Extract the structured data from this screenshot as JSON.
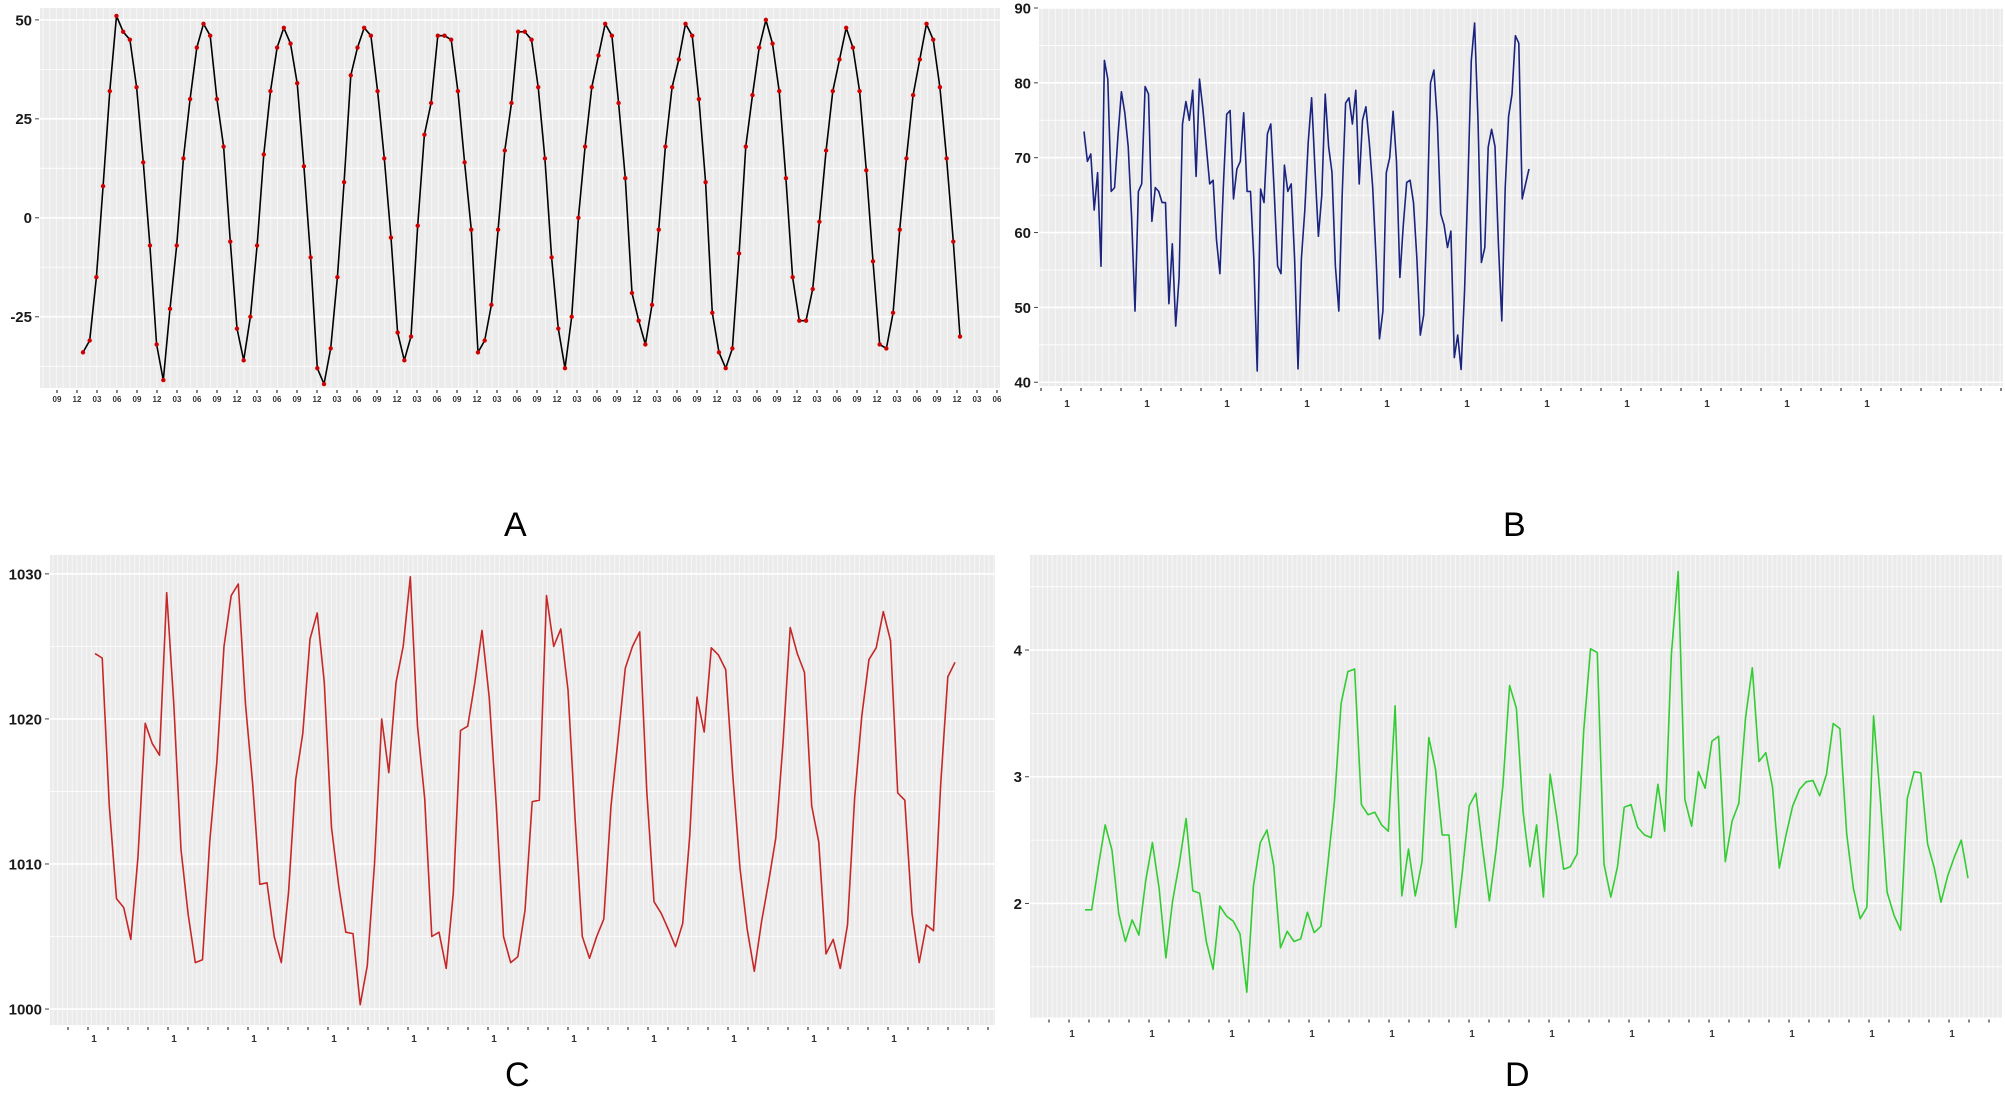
{
  "figure": {
    "panels": [
      {
        "id": "A",
        "label": "A"
      },
      {
        "id": "B",
        "label": "B"
      },
      {
        "id": "C",
        "label": "C"
      },
      {
        "id": "D",
        "label": "D"
      }
    ]
  },
  "chart_data": [
    {
      "panel": "A",
      "type": "line",
      "title": "",
      "xlabel": "",
      "ylabel": "",
      "line_color": "#000000",
      "marker_color": "#cc0000",
      "markers": true,
      "grid": true,
      "background": "#ebebeb",
      "ylim": [
        -43,
        53
      ],
      "yticks": [
        -25,
        0,
        25,
        50
      ],
      "xtick_labels": [
        "09",
        "12",
        "03",
        "06",
        "09",
        "12",
        "03",
        "06",
        "09",
        "12",
        "03",
        "06",
        "09",
        "12",
        "03",
        "06",
        "09",
        "12",
        "03",
        "06",
        "09",
        "12",
        "03",
        "06",
        "09",
        "12",
        "03",
        "06",
        "09",
        "12",
        "03",
        "06",
        "09",
        "12",
        "03",
        "06",
        "09",
        "12",
        "03",
        "06",
        "09",
        "12",
        "03",
        "06",
        "09",
        "12",
        "03",
        "06"
      ],
      "values": [
        -34,
        -31,
        -15,
        8,
        32,
        51,
        47,
        45,
        33,
        14,
        -7,
        -32,
        -41,
        -23,
        -7,
        15,
        30,
        43,
        49,
        46,
        30,
        18,
        -6,
        -28,
        -36,
        -25,
        -7,
        16,
        32,
        43,
        48,
        44,
        34,
        13,
        -10,
        -38,
        -42,
        -33,
        -15,
        9,
        36,
        43,
        48,
        46,
        32,
        15,
        -5,
        -29,
        -36,
        -30,
        -2,
        21,
        29,
        46,
        46,
        45,
        32,
        14,
        -3,
        -34,
        -31,
        -22,
        -3,
        17,
        29,
        47,
        47,
        45,
        33,
        15,
        -10,
        -28,
        -38,
        -25,
        0,
        18,
        33,
        41,
        49,
        46,
        29,
        10,
        -19,
        -26,
        -32,
        -22,
        -3,
        18,
        33,
        40,
        49,
        46,
        30,
        9,
        -24,
        -34,
        -38,
        -33,
        -9,
        18,
        31,
        43,
        50,
        44,
        32,
        10,
        -15,
        -26,
        -26,
        -18,
        -1,
        17,
        32,
        40,
        48,
        43,
        32,
        12,
        -11,
        -32,
        -33,
        -24,
        -3,
        15,
        31,
        40,
        49,
        45,
        33,
        15,
        -6,
        -30
      ]
    },
    {
      "panel": "B",
      "type": "line",
      "title": "",
      "xlabel": "",
      "ylabel": "",
      "line_color": "#1a237e",
      "markers": false,
      "grid": true,
      "background": "#ebebeb",
      "ylim": [
        39.5,
        90
      ],
      "yticks": [
        40,
        50,
        60,
        70,
        80,
        90
      ],
      "xtick_labels": [
        "1",
        "1",
        "1",
        "1",
        "1",
        "1",
        "1",
        "1",
        "1",
        "1",
        "1"
      ],
      "values": [
        73.5,
        69.5,
        70.5,
        63,
        68,
        55.5,
        83,
        80.5,
        65.5,
        66,
        73,
        78.8,
        76,
        71.5,
        62,
        49.5,
        65.5,
        66.5,
        79.5,
        78.5,
        61.5,
        66,
        65.5,
        64,
        64,
        50.5,
        58.5,
        47.5,
        54,
        74.5,
        77.5,
        75,
        79,
        67.5,
        80.5,
        76.5,
        71.5,
        66.5,
        67,
        59,
        54.5,
        66,
        75.8,
        76.3,
        64.5,
        68.5,
        69.5,
        76,
        65.5,
        65.5,
        56.5,
        41.5,
        65.8,
        64,
        73.2,
        74.5,
        65.5,
        55.5,
        54.5,
        69,
        65.5,
        66.5,
        56.5,
        41.8,
        56.5,
        63,
        72,
        78,
        68.5,
        59.5,
        65,
        78.5,
        71.5,
        68,
        55.5,
        49.5,
        65,
        77.3,
        78,
        74.5,
        79,
        66.5,
        75,
        76.8,
        72,
        66,
        56.5,
        45.8,
        49.5,
        68,
        70,
        76.2,
        69.5,
        54,
        61,
        66.7,
        67,
        64,
        56.5,
        46.3,
        49,
        62,
        80,
        81.7,
        75,
        62.5,
        61,
        58,
        60.2,
        43.3,
        46.3,
        41.7,
        52,
        66.5,
        83,
        88,
        75,
        56,
        58,
        71.4,
        73.8,
        71.5,
        58.5,
        48.2,
        66,
        75.5,
        78.5,
        86.3,
        85.3,
        64.5,
        66.5,
        68.5
      ]
    },
    {
      "panel": "C",
      "type": "line",
      "title": "",
      "xlabel": "",
      "ylabel": "",
      "line_color": "#c62828",
      "markers": false,
      "grid": true,
      "background": "#ebebeb",
      "ylim": [
        998.9,
        1031.3
      ],
      "yticks": [
        1000,
        1010,
        1020,
        1030
      ],
      "xtick_labels": [
        "1",
        "1",
        "1",
        "1",
        "1",
        "1",
        "1",
        "1",
        "1",
        "1",
        "1"
      ],
      "values": [
        1024.5,
        1024.2,
        1014,
        1007.6,
        1007,
        1004.8,
        1010.5,
        1019.7,
        1018.3,
        1017.5,
        1028.7,
        1021,
        1011,
        1006.5,
        1003.2,
        1003.4,
        1011.5,
        1017,
        1025,
        1028.5,
        1029.3,
        1021,
        1015.5,
        1008.6,
        1008.7,
        1005,
        1003.2,
        1008,
        1015.8,
        1019,
        1025.5,
        1027.3,
        1022.5,
        1012.5,
        1008.5,
        1005.3,
        1005.2,
        1000.3,
        1003,
        1010,
        1020,
        1016.3,
        1022.5,
        1025,
        1029.8,
        1019.5,
        1014.5,
        1005,
        1005.3,
        1002.8,
        1008,
        1019.2,
        1019.5,
        1022.5,
        1026.1,
        1021.5,
        1014,
        1005,
        1003.2,
        1003.6,
        1006.8,
        1014.3,
        1014.4,
        1028.5,
        1025,
        1026.2,
        1022,
        1013,
        1005,
        1003.5,
        1005,
        1006.2,
        1014,
        1018.7,
        1023.5,
        1025,
        1026,
        1015,
        1007.4,
        1006.6,
        1005.5,
        1004.3,
        1005.9,
        1012,
        1021.5,
        1019.1,
        1024.9,
        1024.4,
        1023.4,
        1016.1,
        1009.7,
        1005.5,
        1002.6,
        1006,
        1008.8,
        1011.8,
        1018.3,
        1026.3,
        1024.5,
        1023.2,
        1014,
        1011.5,
        1003.8,
        1004.8,
        1002.8,
        1005.8,
        1014.6,
        1020.2,
        1024.1,
        1024.9,
        1027.4,
        1025.4,
        1014.9,
        1014.4,
        1006.6,
        1003.2,
        1005.8,
        1005.4,
        1015.5,
        1022.9,
        1023.9
      ]
    },
    {
      "panel": "D",
      "type": "line",
      "title": "",
      "xlabel": "",
      "ylabel": "",
      "line_color": "#33cc33",
      "markers": false,
      "grid": true,
      "background": "#ebebeb",
      "ylim": [
        1.1,
        4.75
      ],
      "yticks": [
        2,
        3,
        4
      ],
      "xtick_labels": [
        "1",
        "1",
        "1",
        "1",
        "1",
        "1",
        "1",
        "1",
        "1",
        "1",
        "1",
        "1"
      ],
      "values": [
        1.95,
        1.95,
        2.3,
        2.62,
        2.42,
        1.92,
        1.7,
        1.87,
        1.75,
        2.18,
        2.48,
        2.12,
        1.57,
        2.02,
        2.32,
        2.67,
        2.1,
        2.08,
        1.7,
        1.48,
        1.98,
        1.9,
        1.86,
        1.76,
        1.3,
        2.14,
        2.48,
        2.58,
        2.3,
        1.65,
        1.78,
        1.7,
        1.72,
        1.93,
        1.77,
        1.82,
        2.3,
        2.8,
        3.58,
        3.83,
        3.85,
        2.78,
        2.7,
        2.72,
        2.62,
        2.57,
        3.56,
        2.06,
        2.43,
        2.06,
        2.33,
        3.31,
        3.06,
        2.54,
        2.54,
        1.81,
        2.26,
        2.77,
        2.87,
        2.43,
        2.02,
        2.43,
        2.93,
        3.72,
        3.54,
        2.72,
        2.29,
        2.62,
        2.05,
        3.02,
        2.68,
        2.27,
        2.29,
        2.39,
        3.37,
        4.01,
        3.98,
        2.31,
        2.05,
        2.29,
        2.76,
        2.78,
        2.6,
        2.54,
        2.52,
        2.94,
        2.57,
        3.97,
        4.62,
        2.82,
        2.61,
        3.04,
        2.91,
        3.28,
        3.32,
        2.33,
        2.65,
        2.79,
        3.47,
        3.86,
        3.12,
        3.19,
        2.92,
        2.28,
        2.54,
        2.77,
        2.9,
        2.96,
        2.97,
        2.85,
        3.02,
        3.42,
        3.38,
        2.55,
        2.12,
        1.88,
        1.97,
        3.48,
        2.82,
        2.09,
        1.91,
        1.79,
        2.83,
        3.04,
        3.03,
        2.47,
        2.28,
        2.01,
        2.22,
        2.37,
        2.5,
        2.2
      ]
    }
  ]
}
